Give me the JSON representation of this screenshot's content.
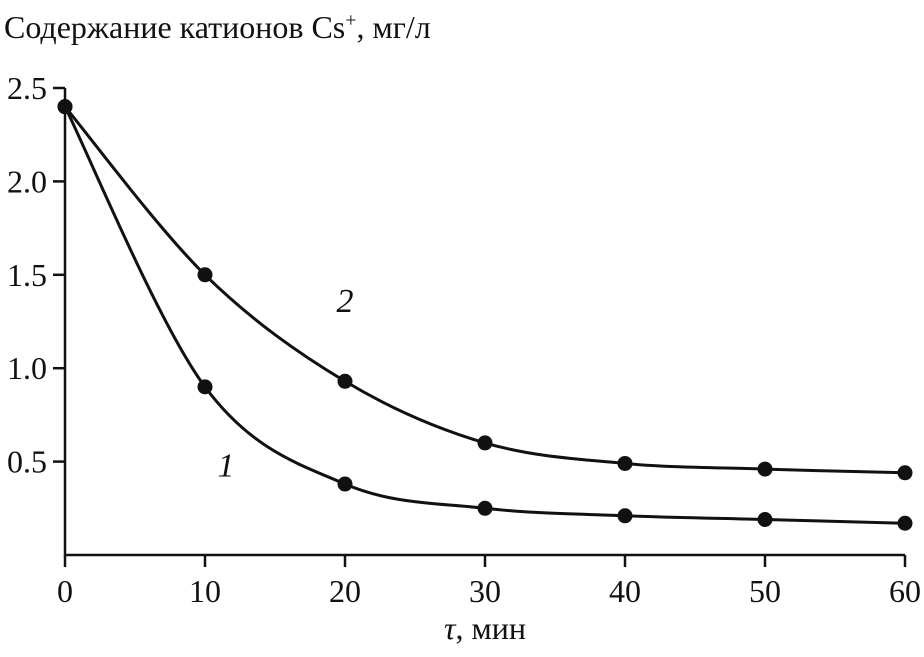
{
  "chart_data": {
    "type": "line",
    "title": "Содержание катионов Cs⁺, мг/л",
    "title_parts": {
      "prefix": "Содержание катионов Cs",
      "sup": "+",
      "suffix": ", мг/л"
    },
    "xlabel": "τ, мин",
    "xlabel_parts": {
      "symbol": "τ",
      "rest": ", мин"
    },
    "x": [
      0,
      10,
      20,
      30,
      40,
      50,
      60
    ],
    "series": [
      {
        "name": "1",
        "values": [
          2.4,
          0.9,
          0.38,
          0.25,
          0.21,
          0.19,
          0.17
        ],
        "label_pos": {
          "x": 11.5,
          "y": 0.42
        }
      },
      {
        "name": "2",
        "values": [
          2.4,
          1.5,
          0.93,
          0.6,
          0.49,
          0.46,
          0.44
        ],
        "label_pos": {
          "x": 20,
          "y": 1.3
        }
      }
    ],
    "xlim": [
      0,
      60
    ],
    "ylim": [
      0,
      2.5
    ],
    "xticks": [
      0,
      10,
      20,
      30,
      40,
      50,
      60
    ],
    "xtick_labels": [
      "0",
      "10",
      "20",
      "30",
      "40",
      "50",
      "60"
    ],
    "yticks": [
      0.5,
      1.0,
      1.5,
      2.0,
      2.5
    ],
    "ytick_labels": [
      "0.5",
      "1.0",
      "1.5",
      "2.0",
      "2.5"
    ],
    "grid": false,
    "legend": "none",
    "line_color": "#111111",
    "marker": "circle",
    "marker_radius": 7.5
  }
}
